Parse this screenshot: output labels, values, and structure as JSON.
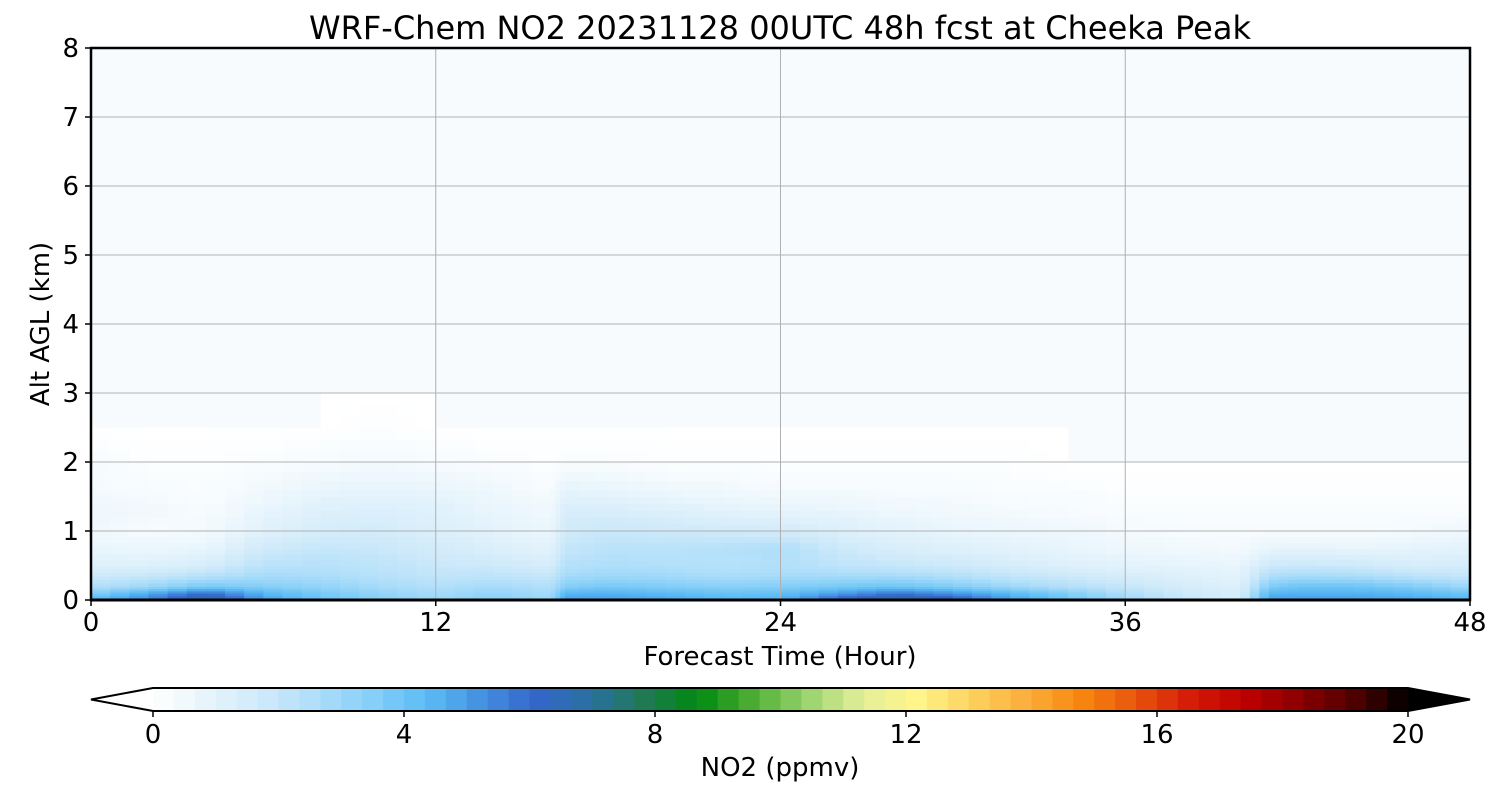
{
  "chart_data": {
    "type": "heatmap",
    "title": "WRF-Chem NO2  20231128 00UTC 48h fcst at Cheeka Peak",
    "xlabel": "Forecast Time (Hour)",
    "ylabel": "Alt AGL (km)",
    "xlim": [
      0,
      48
    ],
    "ylim": [
      0,
      8
    ],
    "x_ticks": [
      "0",
      "12",
      "24",
      "36",
      "48"
    ],
    "y_ticks": [
      "0",
      "1",
      "2",
      "3",
      "4",
      "5",
      "6",
      "7",
      "8"
    ],
    "grid": true,
    "colorbar": {
      "label": "NO2  (ppmv)",
      "range": [
        0,
        20
      ],
      "ticks": [
        "0",
        "4",
        "8",
        "12",
        "16",
        "20"
      ],
      "extend": "both",
      "colors": [
        "#ffffff",
        "#e6f4fc",
        "#cfeafa",
        "#aedefa",
        "#86cff8",
        "#5cbcf5",
        "#4592e0",
        "#3366cc",
        "#2a70a0",
        "#1f7a55",
        "#008a10",
        "#4fae34",
        "#9ad46e",
        "#e4ef9a",
        "#fff58a",
        "#fdd25e",
        "#fbae3c",
        "#f7870f",
        "#e8550c",
        "#d41c08",
        "#c00000",
        "#8a0000",
        "#500000",
        "#000000"
      ]
    },
    "x": [
      0,
      2,
      4,
      6,
      8,
      10,
      12,
      14,
      16,
      16.5,
      18,
      20,
      22,
      24,
      26,
      28,
      30,
      32,
      34,
      36,
      38,
      40,
      41,
      42,
      44,
      46,
      48
    ],
    "y": [
      0,
      0.1,
      0.2,
      0.35,
      0.5,
      0.75,
      1.0,
      1.3,
      1.6,
      2.0,
      2.5,
      3.0,
      8.0
    ],
    "z": [
      [
        4.5,
        5.5,
        7.5,
        5.0,
        4.0,
        3.5,
        3.0,
        3.5,
        3.0,
        5.0,
        5.0,
        4.8,
        4.5,
        4.6,
        6.5,
        7.5,
        6.8,
        5.0,
        4.0,
        3.0,
        2.0,
        1.5,
        5.0,
        5.0,
        5.0,
        4.8,
        4.5
      ],
      [
        3.5,
        4.8,
        6.0,
        4.5,
        3.8,
        3.2,
        2.8,
        3.2,
        2.8,
        4.5,
        4.6,
        4.4,
        4.1,
        4.2,
        5.0,
        5.8,
        5.2,
        4.4,
        3.6,
        2.6,
        1.8,
        1.4,
        4.5,
        4.6,
        4.6,
        4.4,
        4.0
      ],
      [
        2.5,
        3.0,
        3.8,
        3.5,
        3.2,
        2.8,
        2.5,
        2.8,
        2.5,
        3.5,
        3.8,
        3.6,
        3.4,
        3.5,
        3.8,
        4.0,
        3.6,
        3.0,
        2.5,
        2.0,
        1.5,
        1.2,
        3.6,
        4.0,
        4.0,
        3.6,
        3.0
      ],
      [
        1.8,
        2.0,
        2.4,
        2.8,
        2.7,
        2.4,
        2.1,
        2.2,
        2.0,
        2.8,
        3.0,
        2.9,
        2.7,
        2.8,
        2.8,
        2.8,
        2.5,
        2.1,
        1.8,
        1.5,
        1.2,
        1.0,
        2.6,
        2.8,
        2.7,
        2.3,
        2.0
      ],
      [
        1.2,
        1.2,
        1.5,
        2.3,
        2.4,
        2.2,
        1.9,
        1.8,
        1.5,
        2.4,
        2.6,
        2.5,
        2.4,
        2.5,
        2.2,
        2.0,
        1.8,
        1.5,
        1.2,
        1.0,
        0.9,
        0.8,
        1.8,
        1.9,
        1.8,
        1.5,
        1.6
      ],
      [
        0.8,
        0.7,
        0.8,
        1.7,
        2.0,
        1.9,
        1.6,
        1.3,
        1.0,
        2.0,
        2.3,
        2.3,
        2.4,
        2.6,
        1.8,
        1.4,
        1.2,
        1.0,
        0.8,
        0.6,
        0.5,
        0.4,
        0.8,
        0.9,
        0.8,
        0.9,
        1.0
      ],
      [
        0.5,
        0.3,
        0.4,
        1.1,
        1.5,
        1.6,
        1.3,
        1.0,
        0.7,
        1.7,
        1.9,
        1.8,
        1.7,
        1.6,
        1.3,
        1.0,
        0.8,
        0.7,
        0.6,
        0.4,
        0.3,
        0.3,
        0.3,
        0.3,
        0.3,
        0.4,
        0.6
      ],
      [
        0.6,
        0.5,
        0.3,
        0.8,
        1.2,
        1.3,
        1.1,
        0.8,
        0.5,
        1.4,
        1.4,
        1.2,
        1.0,
        0.9,
        0.8,
        0.6,
        0.5,
        0.4,
        0.3,
        0.2,
        0.2,
        0.2,
        0.2,
        0.2,
        0.2,
        0.2,
        0.2
      ],
      [
        0.4,
        0.3,
        0.2,
        0.5,
        0.8,
        0.9,
        0.8,
        0.6,
        0.3,
        0.9,
        0.8,
        0.6,
        0.5,
        0.4,
        0.4,
        0.3,
        0.3,
        0.2,
        0.2,
        0.1,
        0.1,
        0.1,
        0.1,
        0.1,
        0.1,
        0.1,
        0.1
      ],
      [
        0.3,
        0.1,
        0.1,
        0.2,
        0.3,
        0.4,
        0.3,
        0.2,
        0.1,
        0.2,
        0.2,
        0.1,
        0.1,
        0.1,
        0.1,
        0.1,
        0.1,
        0.1,
        0.0,
        0.0,
        0.0,
        0.0,
        0.0,
        0.0,
        0.0,
        0.0,
        0.0
      ],
      [
        0.0,
        0.0,
        0.0,
        0.0,
        0.0,
        0.1,
        0.0,
        0.0,
        0.0,
        0.0,
        0.0,
        0.0,
        0.0,
        0.0,
        0.0,
        0.0,
        0.0,
        0.0,
        0.0,
        0.0,
        0.0,
        0.0,
        0.0,
        0.0,
        0.0,
        0.0,
        0.0
      ],
      [
        0.0,
        0.0,
        0.0,
        0.0,
        0.0,
        0.0,
        0.0,
        0.0,
        0.0,
        0.0,
        0.0,
        0.0,
        0.0,
        0.0,
        0.0,
        0.0,
        0.0,
        0.0,
        0.0,
        0.0,
        0.0,
        0.0,
        0.0,
        0.0,
        0.0,
        0.0,
        0.0
      ],
      [
        0.0,
        0.0,
        0.0,
        0.0,
        0.0,
        0.0,
        0.0,
        0.0,
        0.0,
        0.0,
        0.0,
        0.0,
        0.0,
        0.0,
        0.0,
        0.0,
        0.0,
        0.0,
        0.0,
        0.0,
        0.0,
        0.0,
        0.0,
        0.0,
        0.0,
        0.0,
        0.0
      ]
    ]
  }
}
